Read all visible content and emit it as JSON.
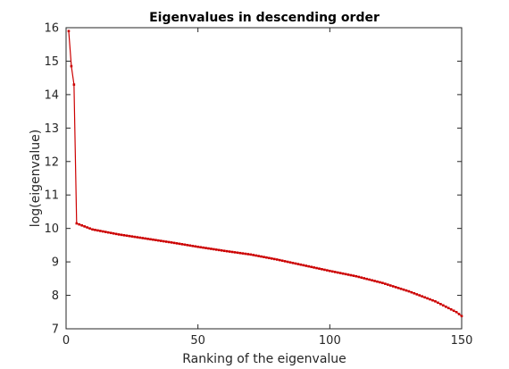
{
  "chart_data": {
    "type": "line",
    "title": "Eigenvalues in descending order",
    "xlabel": "Ranking of the eigenvalue",
    "ylabel": "log(eigenvalue)",
    "xlim": [
      0,
      150
    ],
    "ylim": [
      7,
      16
    ],
    "xticks": [
      0,
      50,
      100,
      150
    ],
    "yticks": [
      7,
      8,
      9,
      10,
      11,
      12,
      13,
      14,
      15,
      16
    ],
    "grid": false,
    "series": [
      {
        "color": "#cc0000",
        "marker": "point",
        "points": [
          [
            1,
            15.9
          ],
          [
            2,
            14.85
          ],
          [
            3,
            14.3
          ],
          [
            4,
            10.15
          ],
          [
            10,
            9.97
          ],
          [
            20,
            9.82
          ],
          [
            30,
            9.7
          ],
          [
            40,
            9.58
          ],
          [
            50,
            9.45
          ],
          [
            60,
            9.33
          ],
          [
            70,
            9.22
          ],
          [
            80,
            9.07
          ],
          [
            90,
            8.9
          ],
          [
            100,
            8.73
          ],
          [
            110,
            8.57
          ],
          [
            120,
            8.37
          ],
          [
            130,
            8.12
          ],
          [
            140,
            7.82
          ],
          [
            148,
            7.5
          ],
          [
            150,
            7.38
          ]
        ]
      }
    ]
  }
}
